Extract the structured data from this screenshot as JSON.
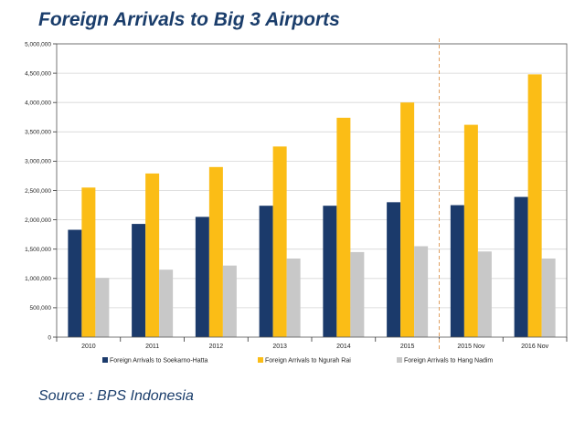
{
  "chart_data": {
    "type": "bar",
    "title": "Foreign Arrivals to Big 3 Airports",
    "categories": [
      "2010",
      "2011",
      "2012",
      "2013",
      "2014",
      "2015",
      "2015 Nov",
      "2016 Nov"
    ],
    "series": [
      {
        "name": "Foreign Arrivals to Soekarno-Hatta",
        "color": "#1b3a6b",
        "values": [
          1830000,
          1930000,
          2050000,
          2240000,
          2240000,
          2300000,
          2250000,
          2390000
        ]
      },
      {
        "name": "Foreign Arrivals to Ngurah Rai",
        "color": "#fbbd16",
        "values": [
          2550000,
          2790000,
          2900000,
          3250000,
          3740000,
          4000000,
          3620000,
          4480000
        ]
      },
      {
        "name": "Foreign Arrivals to Hang Nadim",
        "color": "#c8c8c8",
        "values": [
          1010000,
          1150000,
          1220000,
          1340000,
          1450000,
          1550000,
          1460000,
          1340000
        ]
      }
    ],
    "y_ticks": [
      "0",
      "500,000",
      "1,000,000",
      "1,500,000",
      "2,000,000",
      "2,500,000",
      "3,000,000",
      "3,500,000",
      "4,000,000",
      "4,500,000",
      "5,000,000"
    ],
    "ylim": [
      0,
      5000000
    ],
    "xlabel": "",
    "ylabel": "",
    "legend_position": "bottom",
    "separator_after_category": "2015",
    "separator_color": "#e0a060"
  },
  "source": "Source : BPS Indonesia"
}
